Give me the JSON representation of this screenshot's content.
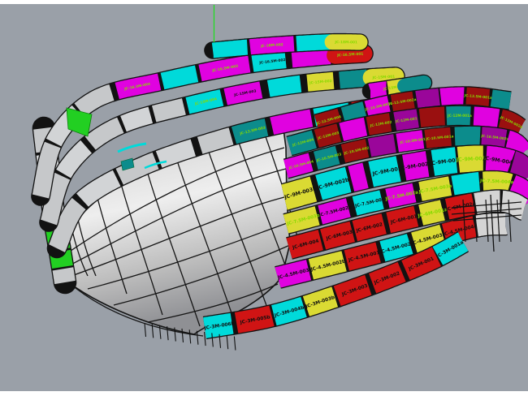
{
  "viewport": {
    "background": "#9aa0a8",
    "frame_color": "#ffffff",
    "construction_line_color": "#1be01b"
  },
  "palette": {
    "m": "#e002e0",
    "c": "#00dada",
    "t": "#0c8c8c",
    "y": "#dada33",
    "r": "#d01414",
    "dr": "#9a1010",
    "p": "#9a069a",
    "g": "#22cf22",
    "gy": "#c6c8ca",
    "gl": "#d4d4d4",
    "label_green": "#86d900",
    "label_black": "#101010",
    "wire": "#151515",
    "hull_light": "#ececec",
    "hull_mid": "#c2c2c2",
    "hull_dark": "#8f9094"
  },
  "bands": {
    "kbow": {
      "cells": [
        {
          "c": "gy"
        },
        {
          "c": "gy"
        },
        {
          "c": "gy"
        },
        {
          "c": "gy"
        },
        {
          "c": "g"
        },
        {
          "c": "g",
          "w": 0.7
        },
        {
          "c": "gy",
          "w": 0.6
        }
      ]
    },
    "k1": {
      "cells": [
        {
          "c": "gy",
          "w": 1.6
        },
        {
          "c": "gy",
          "w": 1.2
        },
        {
          "c": "gy",
          "w": 1.2
        },
        {
          "c": "m",
          "w": 1.4,
          "t": "JC-16.5M-004",
          "tc": "g"
        },
        {
          "c": "c",
          "w": 1.1
        },
        {
          "c": "m",
          "w": 1.6,
          "t": "JC-16.5M-003",
          "tc": "g"
        },
        {
          "c": "c",
          "w": 1.1,
          "t": "JC-16.5M-002",
          "tc": "k"
        },
        {
          "c": "m",
          "w": 1.3
        },
        {
          "c": "r",
          "w": 0.9,
          "cap": true,
          "t": "JC-16.5M-001",
          "tc": "g"
        }
      ]
    },
    "k2": {
      "cells": [
        {
          "c": "gy",
          "w": 1.5
        },
        {
          "c": "gy",
          "w": 1.2
        },
        {
          "c": "gy",
          "w": 1.2
        },
        {
          "c": "gy",
          "w": 1.0
        },
        {
          "c": "gy",
          "w": 1.0
        },
        {
          "c": "c",
          "w": 1.2,
          "t": "JC-15M-004",
          "tc": "g"
        },
        {
          "c": "m",
          "w": 1.3,
          "t": "JC-15M-003",
          "tc": "k"
        },
        {
          "c": "c",
          "w": 1.2
        },
        {
          "c": "y",
          "w": 1.0,
          "t": "JC-15M-002",
          "tc": "g"
        },
        {
          "c": "t",
          "w": 1.0
        },
        {
          "c": "y",
          "w": 0.8,
          "cap": true,
          "t": "JC-15M-001",
          "tc": "g"
        }
      ]
    },
    "k3": {
      "cells": [
        {
          "c": "gy",
          "w": 1.4
        },
        {
          "c": "gy",
          "w": 1.2
        },
        {
          "c": "gy",
          "w": 1.1
        },
        {
          "c": "gy",
          "w": 1.1
        },
        {
          "c": "gy",
          "w": 1.0
        },
        {
          "c": "t",
          "w": 1.0,
          "t": "JC-13.5M-003",
          "tc": "g"
        },
        {
          "c": "m",
          "w": 1.2
        },
        {
          "c": "c",
          "w": 1.0,
          "t": "JC-13.5M-002",
          "tc": "k"
        },
        {
          "c": "r",
          "w": 1.0
        },
        {
          "c": "t",
          "w": 0.8,
          "cap": true,
          "t": "JC-13.5M-001",
          "tc": "g"
        }
      ]
    },
    "k0": {
      "cells": [
        {
          "c": "c"
        },
        {
          "c": "m",
          "w": 1.3,
          "t": "JC-18M-002",
          "tc": "g"
        },
        {
          "c": "c"
        },
        {
          "c": "y",
          "w": 0.8,
          "cap": true,
          "t": "JC-18M-001",
          "tc": "g"
        }
      ]
    },
    "kx": {
      "cells": [
        {
          "c": "m",
          "w": 0.5
        },
        {
          "c": "y",
          "w": 0.5,
          "t": "JC-15M-001a",
          "tc": "g"
        },
        {
          "c": "t",
          "w": 0.6,
          "cap": true
        }
      ]
    },
    "w0": {
      "cells": [
        {
          "c": "dr",
          "t": "JC-13.5M-004",
          "tc": "g"
        },
        {
          "c": "t"
        },
        {
          "c": "m",
          "t": "JC-13.5M-003a",
          "tc": "g"
        },
        {
          "c": "dr",
          "t": "JC-13.5M-002a",
          "tc": "g"
        },
        {
          "c": "p"
        },
        {
          "c": "m"
        },
        {
          "c": "dr",
          "t": "JC-13.5M-001a",
          "tc": "g"
        },
        {
          "c": "t",
          "w": 0.8
        }
      ]
    },
    "w1": {
      "cells": [
        {
          "c": "t",
          "t": "JC-12M-004",
          "tc": "g"
        },
        {
          "c": "dr",
          "t": "JC-12M-003",
          "tc": "g"
        },
        {
          "c": "m"
        },
        {
          "c": "dr",
          "t": "JC-12M-002",
          "tc": "g"
        },
        {
          "c": "p",
          "t": "JC-12M-001",
          "tc": "g"
        },
        {
          "c": "dr"
        },
        {
          "c": "t",
          "t": "JC-12M-001a",
          "tc": "g"
        },
        {
          "c": "m"
        },
        {
          "c": "dr",
          "w": 0.9,
          "t": "JC-12M-002a",
          "tc": "g"
        }
      ]
    },
    "w2": {
      "cells": [
        {
          "c": "m",
          "t": "JC-10.5M-004",
          "tc": "g"
        },
        {
          "c": "t",
          "t": "JC-10.5M-003",
          "tc": "g"
        },
        {
          "c": "dr",
          "t": "JC-10.5M-002",
          "tc": "g"
        },
        {
          "c": "p"
        },
        {
          "c": "m",
          "t": "JC-10.5M-001",
          "tc": "g"
        },
        {
          "c": "dr",
          "t": "JC-10.5M-001a",
          "tc": "g"
        },
        {
          "c": "t"
        },
        {
          "c": "p",
          "w": 0.9,
          "t": "JC-10.5M-002a",
          "tc": "g"
        },
        {
          "c": "m",
          "w": 0.8
        }
      ]
    },
    "w3": {
      "cells": [
        {
          "c": "y",
          "w": 1.2,
          "t": "JC-9M-003b",
          "tc": "k"
        },
        {
          "c": "c",
          "w": 1.3,
          "t": "JC-9M-002b",
          "tc": "k"
        },
        {
          "c": "m",
          "w": 0.7
        },
        {
          "c": "c",
          "w": 1.2,
          "t": "JC-9M-001",
          "tc": "k"
        },
        {
          "c": "m",
          "w": 1.1,
          "t": "JC-9M-002a",
          "tc": "k"
        },
        {
          "c": "c",
          "w": 1.0,
          "t": "JC-9M-001a",
          "tc": "k"
        },
        {
          "c": "y",
          "w": 1.0,
          "t": "JC-9M-003a",
          "tc": "g"
        },
        {
          "c": "m",
          "w": 1.0,
          "t": "JC-9M-004a",
          "tc": "k"
        },
        {
          "c": "p",
          "w": 0.8
        }
      ]
    },
    "w4": {
      "cells": [
        {
          "c": "y",
          "t": "JC-7.5M-003b",
          "tc": "g"
        },
        {
          "c": "m",
          "t": "JC-7.5M-002b",
          "tc": "k"
        },
        {
          "c": "c",
          "t": "JC-7.5M-001",
          "tc": "k"
        },
        {
          "c": "m",
          "t": "JC-7.5M-002a",
          "tc": "g"
        },
        {
          "c": "y",
          "t": "JC-7.5M-003a",
          "tc": "g"
        },
        {
          "c": "c",
          "w": 0.9
        },
        {
          "c": "y",
          "w": 0.9,
          "t": "JC-7.5M-004a",
          "tc": "g"
        },
        {
          "c": "m",
          "w": 0.8
        }
      ]
    },
    "w5": {
      "cells": [
        {
          "c": "r",
          "w": 1.1,
          "t": "JC-6M-004",
          "tc": "k"
        },
        {
          "c": "r",
          "w": 1.1,
          "t": "JC-6M-003",
          "tc": "k"
        },
        {
          "c": "r",
          "w": 1.1,
          "t": "JC-6M-002",
          "tc": "k"
        },
        {
          "c": "r",
          "w": 1.1,
          "t": "JC-6M-001",
          "tc": "k"
        },
        {
          "c": "y",
          "w": 0.9,
          "t": "JC-6M-001a",
          "tc": "g"
        },
        {
          "c": "r",
          "t": "JC-6M-002a",
          "tc": "k"
        },
        {
          "c": "gl",
          "w": 0.9
        },
        {
          "c": "gl",
          "w": 0.8
        }
      ]
    },
    "w6": {
      "cells": [
        {
          "c": "m",
          "t": "JC-4.5M-003b",
          "tc": "k"
        },
        {
          "c": "y",
          "w": 1.1,
          "t": "JC-4.5M-002b",
          "tc": "k"
        },
        {
          "c": "r",
          "w": 1.1,
          "t": "JC-4.5M-001",
          "tc": "k"
        },
        {
          "c": "c",
          "t": "JC-4.5M-002a",
          "tc": "k"
        },
        {
          "c": "y",
          "t": "JC-4.5M-003a",
          "tc": "k"
        },
        {
          "c": "r",
          "t": "JC-4.5M-004a",
          "tc": "k"
        },
        {
          "c": "gl",
          "w": 0.9
        }
      ]
    },
    "w7": {
      "cells": [
        {
          "c": "c",
          "w": 0.9,
          "t": "JC-3M-006b",
          "tc": "k"
        },
        {
          "c": "r",
          "w": 1.2,
          "t": "JC-3M-005b",
          "tc": "k"
        },
        {
          "c": "c",
          "t": "JC-3M-004b",
          "tc": "k"
        },
        {
          "c": "y",
          "t": "JC-3M-003b",
          "tc": "k"
        },
        {
          "c": "r",
          "w": 1.1,
          "t": "JC-3M-003",
          "tc": "k"
        },
        {
          "c": "r",
          "w": 1.1,
          "t": "JC-3M-002",
          "tc": "k"
        },
        {
          "c": "r",
          "w": 1.1,
          "t": "JC-3M-001",
          "tc": "k"
        },
        {
          "c": "c",
          "w": 0.9,
          "t": "JC-3M-001a",
          "tc": "k"
        }
      ]
    }
  }
}
